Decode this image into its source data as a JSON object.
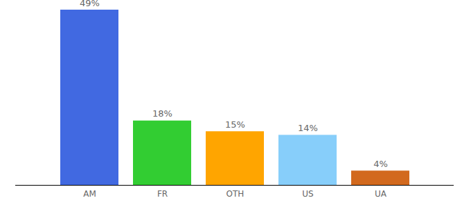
{
  "chart_data": {
    "type": "bar",
    "categories": [
      "AM",
      "FR",
      "OTH",
      "US",
      "UA"
    ],
    "values": [
      49,
      18,
      15,
      14,
      4
    ],
    "value_labels": [
      "49%",
      "18%",
      "15%",
      "14%",
      "4%"
    ],
    "colors": [
      "#4169e1",
      "#32cd32",
      "#ffa500",
      "#87cefa",
      "#d2691e"
    ],
    "ylim": [
      0,
      49
    ],
    "yticks": [],
    "grid": false,
    "data_labels": true,
    "tick_labels": "x"
  }
}
